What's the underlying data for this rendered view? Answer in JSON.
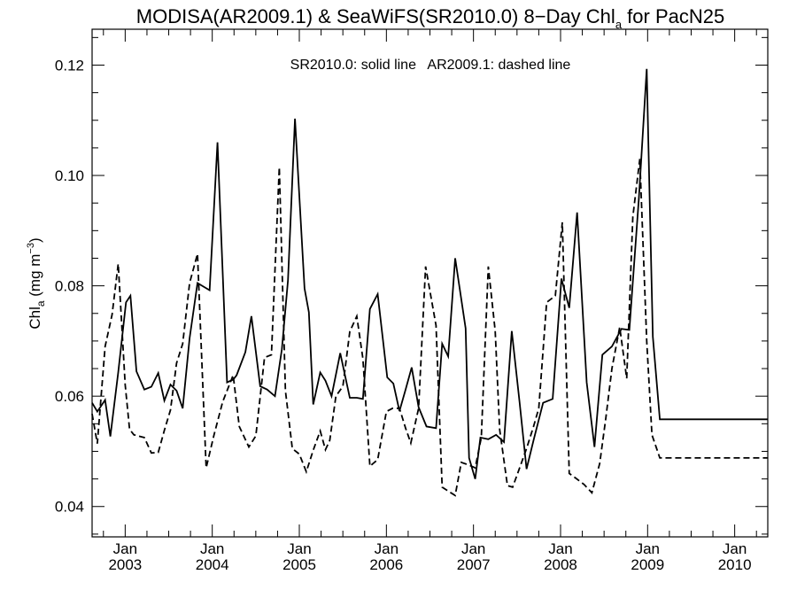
{
  "chart_data": {
    "type": "line",
    "title": {
      "prefix": "MODISA(AR2009.1) & SeaWiFS(SR2010.0) 8−Day Chl",
      "sub": "a",
      "suffix": " for PacN25"
    },
    "ylabel": {
      "main": "Chl",
      "sub": "a",
      "unit_open": " (mg m",
      "sup": "−3",
      "unit_close": ")"
    },
    "annotation": "SR2010.0: solid line   AR2009.1: dashed line",
    "xlim": [
      2002.62,
      2010.38
    ],
    "ylim": [
      0.0345,
      0.1265
    ],
    "yticks": [
      0.04,
      0.06,
      0.08,
      0.1,
      0.12
    ],
    "ytick_labels": [
      "0.04",
      "0.06",
      "0.08",
      "0.10",
      "0.12"
    ],
    "xticks": [
      {
        "month": "Jan",
        "year": "2003",
        "x": 2003.0
      },
      {
        "month": "Jan",
        "year": "2004",
        "x": 2004.0
      },
      {
        "month": "Jan",
        "year": "2005",
        "x": 2005.0
      },
      {
        "month": "Jan",
        "year": "2006",
        "x": 2006.0
      },
      {
        "month": "Jan",
        "year": "2007",
        "x": 2007.0
      },
      {
        "month": "Jan",
        "year": "2008",
        "x": 2008.0
      },
      {
        "month": "Jan",
        "year": "2009",
        "x": 2009.0
      },
      {
        "month": "Jan",
        "year": "2010",
        "x": 2010.0
      }
    ],
    "grid": false,
    "series": [
      {
        "name": "SR2010.0",
        "style": "solid",
        "color": "#000000",
        "x": [
          2002.62,
          2002.68,
          2002.77,
          2002.83,
          2002.92,
          2003.01,
          2003.06,
          2003.13,
          2003.22,
          2003.3,
          2003.38,
          2003.45,
          2003.52,
          2003.59,
          2003.66,
          2003.74,
          2003.83,
          2003.97,
          2004.06,
          2004.17,
          2004.24,
          2004.28,
          2004.38,
          2004.45,
          2004.55,
          2004.63,
          2004.72,
          2004.8,
          2004.87,
          2004.95,
          2005.06,
          2005.11,
          2005.16,
          2005.24,
          2005.3,
          2005.37,
          2005.47,
          2005.58,
          2005.66,
          2005.73,
          2005.81,
          2005.9,
          2006.01,
          2006.08,
          2006.15,
          2006.22,
          2006.29,
          2006.37,
          2006.46,
          2006.57,
          2006.64,
          2006.71,
          2006.79,
          2006.91,
          2006.95,
          2007.02,
          2007.08,
          2007.17,
          2007.26,
          2007.35,
          2007.44,
          2007.53,
          2007.61,
          2007.69,
          2007.8,
          2007.91,
          2008.01,
          2008.1,
          2008.19,
          2008.3,
          2008.39,
          2008.48,
          2008.59,
          2008.7,
          2008.79,
          2008.9,
          2008.99,
          2009.01,
          2009.06,
          2009.14,
          2009.28,
          2009.44,
          2009.61,
          2009.75,
          2009.81,
          2009.84,
          2010.01,
          2010.08,
          2010.13,
          2010.18,
          2010.27,
          2010.38
        ],
        "y": [
          0.0588,
          0.0572,
          0.0593,
          0.0527,
          0.0643,
          0.077,
          0.0782,
          0.0645,
          0.0612,
          0.0617,
          0.0642,
          0.0592,
          0.0621,
          0.061,
          0.0578,
          0.0705,
          0.0805,
          0.0792,
          0.106,
          0.0625,
          0.063,
          0.0638,
          0.068,
          0.0745,
          0.0618,
          0.0612,
          0.06,
          0.0685,
          0.081,
          0.1103,
          0.0795,
          0.0752,
          0.0585,
          0.0643,
          0.0628,
          0.06,
          0.0678,
          0.0597,
          0.0597,
          0.0595,
          0.0758,
          0.0785,
          0.0634,
          0.0623,
          0.0573,
          0.0612,
          0.0652,
          0.058,
          0.0545,
          0.0542,
          0.0695,
          0.0672,
          0.085,
          0.0723,
          0.0488,
          0.045,
          0.0525,
          0.0522,
          0.053,
          0.0517,
          0.0718,
          0.0588,
          0.0468,
          0.052,
          0.0588,
          0.0595,
          0.0813,
          0.076,
          0.0933,
          0.0625,
          0.0508,
          0.0675,
          0.069,
          0.0722,
          0.072,
          0.096,
          0.1193,
          0.105,
          0.0708,
          0.0558,
          0.0558,
          0.0558,
          0.0558,
          0.0558,
          0.0558,
          0.0558,
          0.0558,
          0.0558,
          0.0558,
          0.0558,
          0.0558,
          0.0558
        ]
      },
      {
        "name": "AR2009.1",
        "style": "dashed",
        "color": "#000000",
        "x": [
          2002.62,
          2002.68,
          2002.77,
          2002.85,
          2002.92,
          2003.0,
          2003.05,
          2003.1,
          2003.22,
          2003.3,
          2003.38,
          2003.45,
          2003.52,
          2003.59,
          2003.66,
          2003.74,
          2003.83,
          2003.93,
          2004.02,
          2004.12,
          2004.24,
          2004.31,
          2004.42,
          2004.5,
          2004.6,
          2004.68,
          2004.77,
          2004.84,
          2004.92,
          2005.0,
          2005.08,
          2005.16,
          2005.24,
          2005.3,
          2005.35,
          2005.42,
          2005.5,
          2005.58,
          2005.66,
          2005.73,
          2005.81,
          2005.9,
          2006.0,
          2006.07,
          2006.15,
          2006.22,
          2006.28,
          2006.37,
          2006.45,
          2006.57,
          2006.64,
          2006.71,
          2006.79,
          2006.86,
          2006.95,
          2007.02,
          2007.09,
          2007.17,
          2007.25,
          2007.3,
          2007.39,
          2007.45,
          2007.53,
          2007.61,
          2007.69,
          2007.75,
          2007.84,
          2007.94,
          2008.02,
          2008.1,
          2008.17,
          2008.27,
          2008.36,
          2008.45,
          2008.52,
          2008.59,
          2008.68,
          2008.76,
          2008.83,
          2008.91,
          2008.99,
          2009.05,
          2009.14,
          2009.21,
          2009.29,
          2009.36,
          2009.43,
          2009.52,
          2009.6,
          2009.68,
          2009.76,
          2009.84,
          2009.91,
          2010.01,
          2010.08,
          2010.14,
          2010.23,
          2010.31,
          2010.38
        ],
        "y": [
          0.0568,
          0.0514,
          0.069,
          0.0748,
          0.084,
          0.062,
          0.054,
          0.053,
          0.0525,
          0.0497,
          0.0498,
          0.0538,
          0.0575,
          0.066,
          0.0695,
          0.0805,
          0.0858,
          0.047,
          0.053,
          0.059,
          0.0638,
          0.0545,
          0.0508,
          0.0528,
          0.067,
          0.0675,
          0.1015,
          0.061,
          0.0505,
          0.0495,
          0.0463,
          0.0502,
          0.0537,
          0.0503,
          0.052,
          0.06,
          0.0618,
          0.0717,
          0.0745,
          0.0668,
          0.0473,
          0.0485,
          0.0572,
          0.0578,
          0.0578,
          0.0542,
          0.0515,
          0.0578,
          0.0835,
          0.0728,
          0.0435,
          0.0428,
          0.042,
          0.048,
          0.0475,
          0.047,
          0.0525,
          0.0835,
          0.0718,
          0.054,
          0.0438,
          0.0435,
          0.047,
          0.0505,
          0.0545,
          0.0578,
          0.077,
          0.0782,
          0.0915,
          0.046,
          0.0452,
          0.044,
          0.0425,
          0.0478,
          0.056,
          0.065,
          0.0725,
          0.0632,
          0.0925,
          0.103,
          0.07,
          0.053,
          0.0488,
          0.0488,
          0.0488,
          0.0488,
          0.0488,
          0.0488,
          0.0488,
          0.0488,
          0.0488,
          0.0488,
          0.0488,
          0.0488,
          0.0488,
          0.0488,
          0.0488,
          0.0488,
          0.0488
        ]
      }
    ]
  }
}
